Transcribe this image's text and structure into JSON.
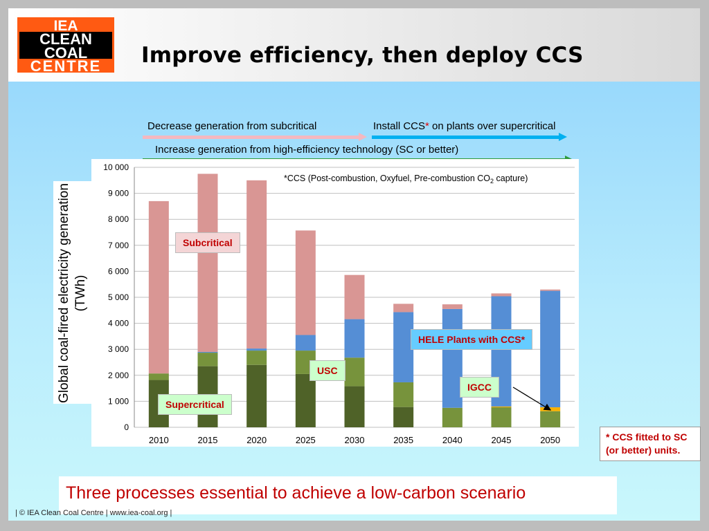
{
  "slide": {
    "logo_lines": [
      "IEA",
      "CLEAN",
      "COAL",
      "CENTRE"
    ],
    "title": "Improve efficiency, then deploy CCS",
    "colors": {
      "logo": "#ff5a12",
      "accent_red": "#c00000"
    }
  },
  "annotations": {
    "subcritical_arrow": "Decrease generation from subcritical",
    "ccs_prefix": "Install CCS",
    "ccs_star": "*",
    "ccs_suffix": " on plants over supercritical",
    "hele_arrow": "Increase generation from high-efficiency technology (SC or better)"
  },
  "chart_labels": {
    "subcritical": "Subcritical",
    "supercritical": "Supercritical",
    "usc": "USC",
    "igcc": "IGCC",
    "hele_ccs": "HELE Plants with CCS*"
  },
  "footnote": "* CCS fitted to SC (or better)  units.",
  "bottom_text": "Three processes essential to achieve a low-carbon scenario",
  "footer": "|   © IEA Clean Coal Centre   |   www.iea-coal.org   |",
  "chart_data": {
    "type": "bar",
    "stacked": true,
    "ylabel": "Global coal-fired electricity generation (TWh)",
    "ylim": [
      0,
      10000
    ],
    "yticks": [
      "0",
      "1 000",
      "2 000",
      "3 000",
      "4 000",
      "5 000",
      "6 000",
      "7 000",
      "8 000",
      "9 000",
      "10 000"
    ],
    "annotation": "*CCS (Post-combustion, Oxyfuel, Pre-combustion CO",
    "annotation_sub": "2",
    "annotation_end": " capture)",
    "categories": [
      "2010",
      "2015",
      "2020",
      "2025",
      "2030",
      "2035",
      "2040",
      "2045",
      "2050"
    ],
    "series": [
      {
        "name": "Supercritical",
        "color": "#4f6228",
        "values": [
          1820,
          2350,
          2400,
          2050,
          1580,
          780,
          0,
          0,
          0
        ]
      },
      {
        "name": "USC",
        "color": "#77933c",
        "values": [
          250,
          520,
          550,
          900,
          1100,
          950,
          750,
          770,
          620
        ]
      },
      {
        "name": "IGCC",
        "color": "#f9b100",
        "values": [
          0,
          0,
          0,
          0,
          0,
          0,
          0,
          30,
          150
        ]
      },
      {
        "name": "HELE Plants with CCS",
        "color": "#558ed5",
        "values": [
          0,
          30,
          80,
          600,
          1480,
          2700,
          3800,
          4240,
          4480
        ]
      },
      {
        "name": "Subcritical",
        "color": "#d99694",
        "values": [
          6630,
          6850,
          6470,
          4020,
          1700,
          320,
          180,
          110,
          50
        ]
      }
    ]
  }
}
